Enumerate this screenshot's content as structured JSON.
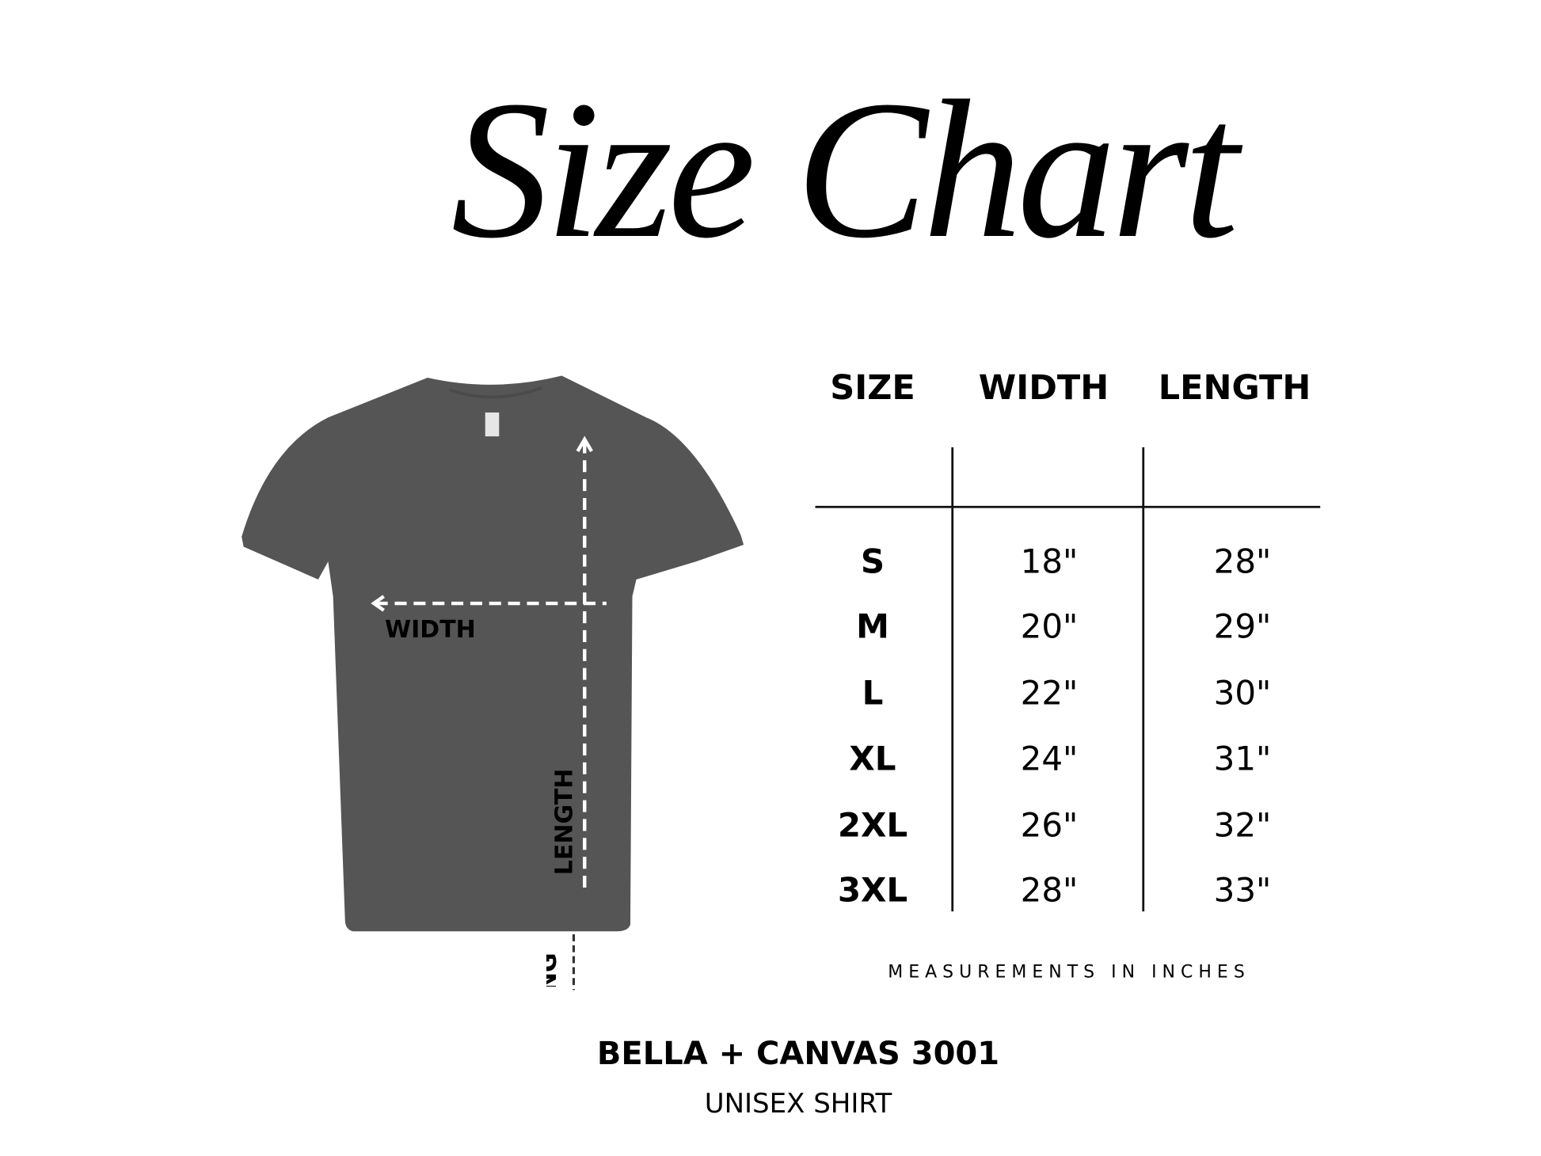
{
  "title": "Size Chart",
  "diagram": {
    "width_label": "WIDTH",
    "length_label": "LENGTH",
    "length_label_clipped": "LENG",
    "shirt_color": "#555555"
  },
  "table": {
    "headers": [
      "SIZE",
      "WIDTH",
      "LENGTH"
    ],
    "rows": [
      {
        "size": "S",
        "width": "18\"",
        "length": "28\""
      },
      {
        "size": "M",
        "width": "20\"",
        "length": "29\""
      },
      {
        "size": "L",
        "width": "22\"",
        "length": "30\""
      },
      {
        "size": "XL",
        "width": "24\"",
        "length": "31\""
      },
      {
        "size": "2XL",
        "width": "26\"",
        "length": "32\""
      },
      {
        "size": "3XL",
        "width": "28\"",
        "length": "33\""
      }
    ],
    "note": "MEASUREMENTS IN INCHES"
  },
  "product": {
    "brand": "BELLA + CANVAS 3001",
    "type": "UNISEX SHIRT"
  }
}
